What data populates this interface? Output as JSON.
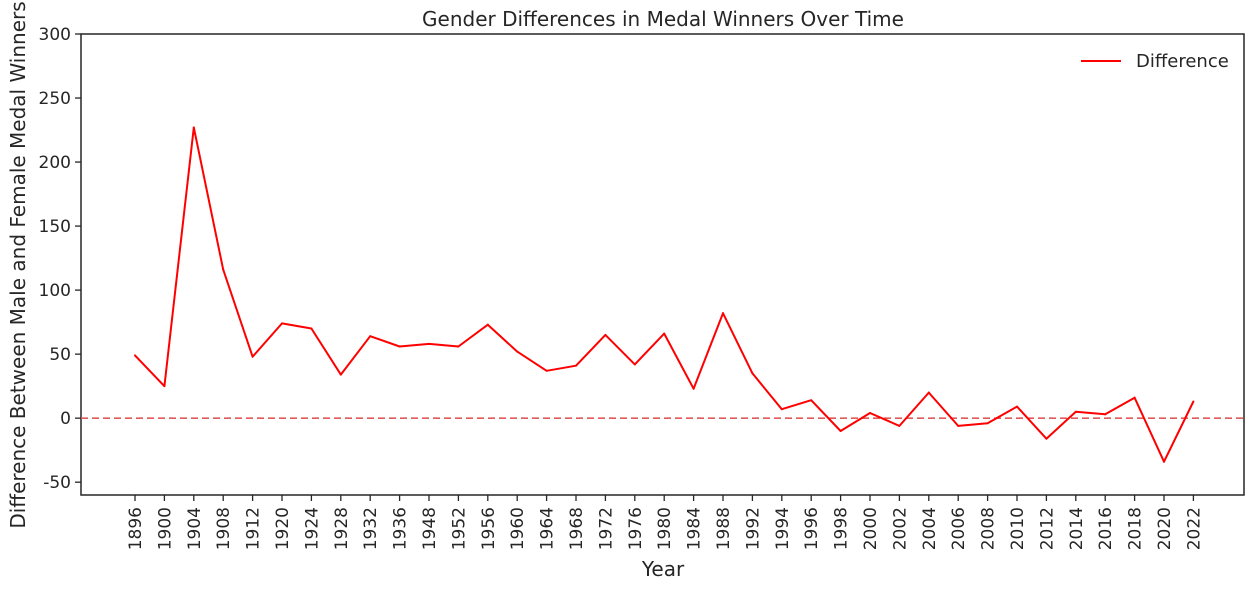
{
  "chart_data": {
    "type": "line",
    "title": "Gender Differences in Medal Winners Over Time",
    "xlabel": "Year",
    "ylabel": "Difference Between Male and Female Medal Winners",
    "categories": [
      "1896",
      "1900",
      "1904",
      "1908",
      "1912",
      "1920",
      "1924",
      "1928",
      "1932",
      "1936",
      "1948",
      "1952",
      "1956",
      "1960",
      "1964",
      "1968",
      "1972",
      "1976",
      "1980",
      "1984",
      "1988",
      "1992",
      "1994",
      "1996",
      "1998",
      "2000",
      "2002",
      "2004",
      "2006",
      "2008",
      "2010",
      "2012",
      "2014",
      "2016",
      "2018",
      "2020",
      "2022"
    ],
    "series": [
      {
        "name": "Difference",
        "color": "#ff0000",
        "values": [
          49,
          25,
          227,
          116,
          48,
          74,
          70,
          34,
          64,
          56,
          58,
          56,
          73,
          52,
          37,
          41,
          65,
          42,
          66,
          23,
          82,
          35,
          7,
          14,
          -10,
          4,
          -6,
          20,
          -6,
          -4,
          9,
          -16,
          5,
          3,
          16,
          -34,
          13
        ]
      }
    ],
    "ylim": [
      -60,
      300
    ],
    "yticks": [
      -50,
      0,
      50,
      100,
      150,
      200,
      250,
      300
    ],
    "reference_line": {
      "y": 0,
      "style": "dashed",
      "color": "#e05a5a"
    },
    "grid": false,
    "legend_position": "top-right"
  }
}
